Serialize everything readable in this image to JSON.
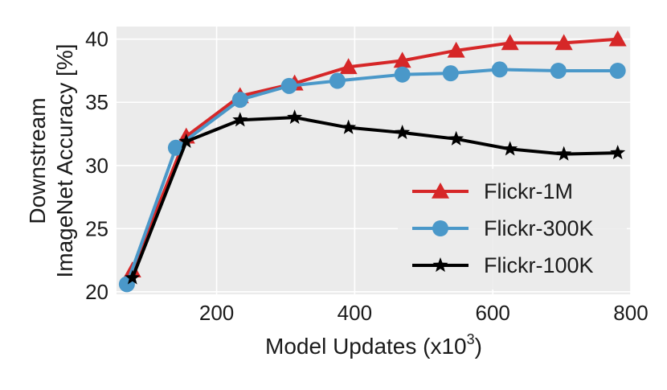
{
  "chart_data": {
    "type": "line",
    "xlabel": "Model Updates (x10",
    "xlabel_sup": "3",
    "xlabel_suffix": ")",
    "ylabel_lines": [
      "Downstream",
      "ImageNet Accuracy [%]"
    ],
    "xlim": [
      55,
      800
    ],
    "ylim": [
      19.8,
      41
    ],
    "xticks": [
      200,
      400,
      600,
      800
    ],
    "yticks": [
      20,
      25,
      30,
      35,
      40
    ],
    "grid": true,
    "legend_position": "lower-right",
    "series": [
      {
        "name": "Flickr-1M",
        "color": "#d62728",
        "marker": "triangle",
        "x": [
          78,
          156,
          234,
          313,
          391,
          469,
          547,
          625,
          703,
          781
        ],
        "y": [
          21.7,
          32.3,
          35.5,
          36.5,
          37.8,
          38.3,
          39.1,
          39.7,
          39.7,
          40.0
        ]
      },
      {
        "name": "Flickr-300K",
        "color": "#4a98c9",
        "marker": "circle",
        "x": [
          70,
          141,
          234,
          305,
          375,
          469,
          539,
          610,
          695,
          781
        ],
        "y": [
          20.6,
          31.4,
          35.2,
          36.3,
          36.7,
          37.2,
          37.3,
          37.6,
          37.5,
          37.5
        ]
      },
      {
        "name": "Flickr-100K",
        "color": "#000000",
        "marker": "star",
        "x": [
          78,
          156,
          234,
          313,
          391,
          469,
          547,
          625,
          703,
          781
        ],
        "y": [
          21.1,
          31.9,
          33.6,
          33.8,
          33.0,
          32.6,
          32.1,
          31.3,
          30.9,
          31.0
        ]
      }
    ]
  }
}
